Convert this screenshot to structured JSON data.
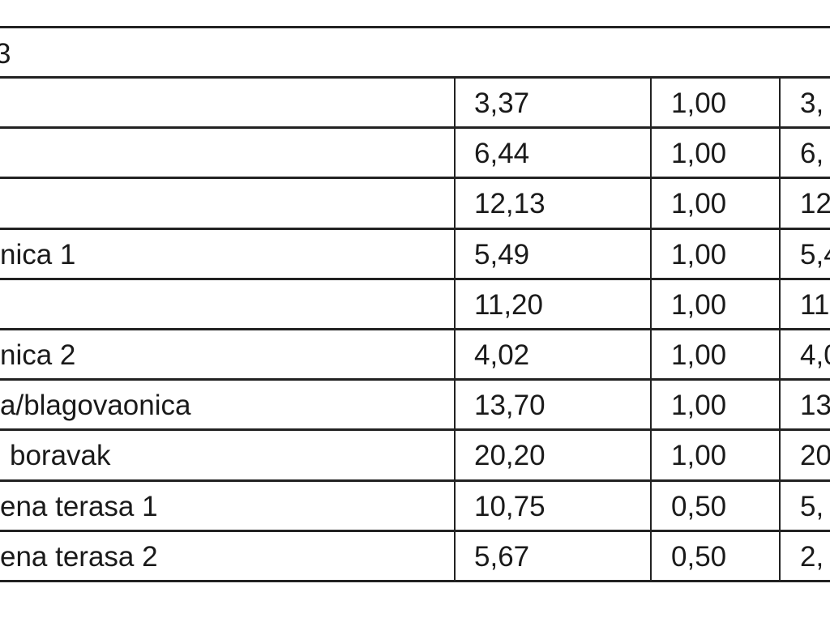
{
  "table": {
    "header": "3",
    "rows": [
      [
        null,
        "3,37",
        "1,00",
        "3,"
      ],
      [
        null,
        "6,44",
        "1,00",
        "6,"
      ],
      [
        null,
        "12,13",
        "1,00",
        "12"
      ],
      [
        "nica 1",
        "5,49",
        "1,00",
        "5,4"
      ],
      [
        null,
        "11,20",
        "1,00",
        "11"
      ],
      [
        "nica 2",
        "4,02",
        "1,00",
        "4,0"
      ],
      [
        "a/blagovaonica",
        "13,70",
        "1,00",
        "13"
      ],
      [
        "boravak",
        "20,20",
        "1,00",
        "20"
      ],
      [
        "ena terasa 1",
        "10,75",
        "0,50",
        "5,"
      ],
      [
        "ena terasa 2",
        "5,67",
        "0,50",
        "2,"
      ]
    ]
  }
}
